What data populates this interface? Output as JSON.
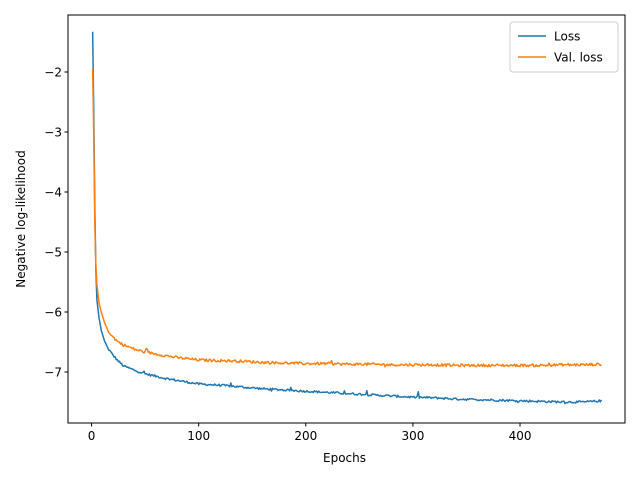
{
  "chart_data": {
    "type": "line",
    "title": "",
    "xlabel": "Epochs",
    "ylabel": "Negative log-likelihood",
    "xlim": [
      -22,
      498
    ],
    "ylim": [
      -7.85,
      -1.05
    ],
    "xticks": [
      0,
      100,
      200,
      300,
      400
    ],
    "xtick_labels": [
      "0",
      "100",
      "200",
      "300",
      "400"
    ],
    "yticks": [
      -7,
      -6,
      -5,
      -4,
      -3,
      -2
    ],
    "ytick_labels": [
      "−7",
      "−6",
      "−5",
      "−4",
      "−3",
      "−2"
    ],
    "grid": false,
    "legend_position": "upper-right",
    "series": [
      {
        "name": "Loss",
        "color": "#1f77b4",
        "points": [
          [
            1,
            -1.33
          ],
          [
            2,
            -2.6
          ],
          [
            3,
            -4.2
          ],
          [
            4,
            -5.3
          ],
          [
            5,
            -5.8
          ],
          [
            7,
            -6.1
          ],
          [
            9,
            -6.3
          ],
          [
            12,
            -6.48
          ],
          [
            15,
            -6.6
          ],
          [
            20,
            -6.72
          ],
          [
            25,
            -6.82
          ],
          [
            30,
            -6.9
          ],
          [
            40,
            -6.97
          ],
          [
            50,
            -7.03
          ],
          [
            60,
            -7.07
          ],
          [
            70,
            -7.11
          ],
          [
            80,
            -7.14
          ],
          [
            90,
            -7.17
          ],
          [
            100,
            -7.2
          ],
          [
            120,
            -7.22
          ],
          [
            140,
            -7.25
          ],
          [
            160,
            -7.28
          ],
          [
            180,
            -7.3
          ],
          [
            200,
            -7.32
          ],
          [
            220,
            -7.34
          ],
          [
            240,
            -7.36
          ],
          [
            260,
            -7.38
          ],
          [
            280,
            -7.4
          ],
          [
            300,
            -7.42
          ],
          [
            320,
            -7.43
          ],
          [
            340,
            -7.45
          ],
          [
            360,
            -7.46
          ],
          [
            380,
            -7.47
          ],
          [
            400,
            -7.48
          ],
          [
            420,
            -7.49
          ],
          [
            440,
            -7.5
          ],
          [
            460,
            -7.5
          ],
          [
            476,
            -7.48
          ]
        ]
      },
      {
        "name": "Val. loss",
        "color": "#ff7f0e",
        "points": [
          [
            1,
            -1.95
          ],
          [
            2,
            -3.0
          ],
          [
            3,
            -4.5
          ],
          [
            4,
            -5.2
          ],
          [
            5,
            -5.55
          ],
          [
            7,
            -5.85
          ],
          [
            9,
            -6.0
          ],
          [
            12,
            -6.17
          ],
          [
            15,
            -6.3
          ],
          [
            20,
            -6.42
          ],
          [
            25,
            -6.5
          ],
          [
            30,
            -6.55
          ],
          [
            40,
            -6.62
          ],
          [
            50,
            -6.67
          ],
          [
            60,
            -6.7
          ],
          [
            70,
            -6.73
          ],
          [
            80,
            -6.76
          ],
          [
            90,
            -6.78
          ],
          [
            100,
            -6.8
          ],
          [
            120,
            -6.81
          ],
          [
            140,
            -6.82
          ],
          [
            160,
            -6.84
          ],
          [
            180,
            -6.85
          ],
          [
            200,
            -6.86
          ],
          [
            220,
            -6.86
          ],
          [
            240,
            -6.87
          ],
          [
            260,
            -6.87
          ],
          [
            280,
            -6.88
          ],
          [
            300,
            -6.88
          ],
          [
            320,
            -6.88
          ],
          [
            340,
            -6.89
          ],
          [
            360,
            -6.89
          ],
          [
            380,
            -6.89
          ],
          [
            400,
            -6.89
          ],
          [
            420,
            -6.89
          ],
          [
            440,
            -6.88
          ],
          [
            460,
            -6.88
          ],
          [
            476,
            -6.87
          ]
        ]
      }
    ]
  }
}
